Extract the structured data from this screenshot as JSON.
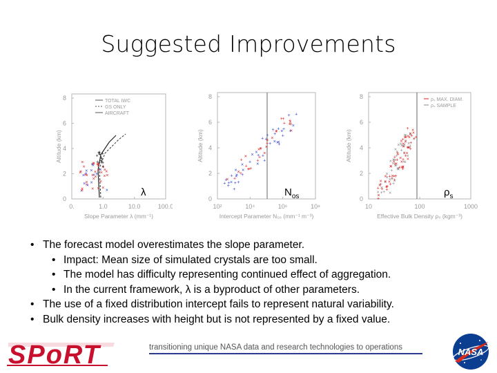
{
  "slide": {
    "title": "Suggested Improvements"
  },
  "figure": {
    "panels": [
      {
        "yticks": [
          "8",
          "6",
          "4",
          "2",
          "0"
        ],
        "xticks": [
          "0.",
          "1.0",
          "10.0",
          "100.0"
        ],
        "ylabel": "Altitude (km)",
        "xlabel": "Slope Parameter λ (mm⁻¹)",
        "legend": [
          "TOTAL IWC",
          "GS ONLY",
          "AIRCRAFT"
        ],
        "symbol": "λ"
      },
      {
        "yticks": [
          "8",
          "6",
          "4",
          "2",
          "0"
        ],
        "xticks": [
          "10²",
          "10⁴",
          "10⁶",
          "10⁸"
        ],
        "ylabel": "Altitude (km)",
        "xlabel": "Intercept Parameter N₀ₛ (mm⁻¹ m⁻³)",
        "symbol_main": "N",
        "symbol_sub": "os"
      },
      {
        "yticks": [
          "8",
          "6",
          "4",
          "2",
          "0"
        ],
        "xticks": [
          "10",
          "100",
          "1000"
        ],
        "ylabel": "Altitude (km)",
        "xlabel": "Effective Bulk Density ρₛ (kgm⁻³)",
        "legend": [
          "ρₛ MAX. DIAM.",
          "ρₛ SAMPLE"
        ],
        "symbol_main": "ρ",
        "symbol_sub": "s"
      }
    ],
    "colors": {
      "red": "#e02020",
      "blue": "#3040d0",
      "black": "#111111",
      "gray": "#8a8a8a"
    }
  },
  "bullets": [
    {
      "level": 1,
      "marker": "•",
      "text": "The forecast model overestimates the slope parameter."
    },
    {
      "level": 2,
      "marker": "•",
      "text": "Impact:  Mean size of simulated crystals are too small."
    },
    {
      "level": 2,
      "marker": "•",
      "text": "The model has difficulty representing continued effect of aggregation."
    },
    {
      "level": 2,
      "marker": "•",
      "text": "In the current framework, λ is a byproduct of other parameters."
    },
    {
      "level": 1,
      "marker": "•",
      "text": "The use of a fixed distribution intercept fails to represent natural variability."
    },
    {
      "level": 1,
      "marker": "•",
      "text": "Bulk density increases with height but is not represented by a fixed value."
    }
  ],
  "footer": {
    "tagline": "transitioning unique NASA data and research technologies to operations",
    "sport_logo_text": "SPoRT",
    "nasa_logo_text": "NASA",
    "colors": {
      "sport_red": "#c8102e",
      "nasa_blue": "#0b3d91",
      "line": "#2d3b8f"
    }
  }
}
